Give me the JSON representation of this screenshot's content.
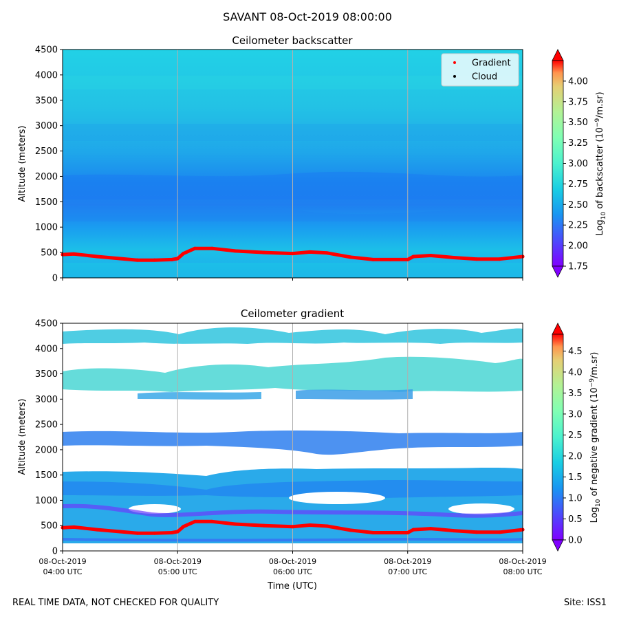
{
  "figure": {
    "suptitle": "SAVANT 08-Oct-2019 08:00:00",
    "footer_left": "REAL TIME DATA, NOT CHECKED FOR QUALITY",
    "footer_right": "Site: ISS1"
  },
  "chart_data": [
    {
      "type": "heatmap",
      "title": "Ceilometer backscatter",
      "ylabel": "Altitude (meters)",
      "xlabel": "",
      "ylim": [
        0,
        4500
      ],
      "yticks": [
        "0",
        "500",
        "1000",
        "1500",
        "2000",
        "2500",
        "3000",
        "3500",
        "4000",
        "4500"
      ],
      "xticks": [
        "04:00",
        "05:00",
        "06:00",
        "07:00",
        "08:00"
      ],
      "x_tick_labels_shown": false,
      "grid": "vertical at hourly ticks",
      "colormap": "rainbow",
      "colorbar": {
        "label_prefix": "Log",
        "label_sub": "10",
        "label_mid": " of backscatter (10",
        "label_sup": "−9",
        "label_suffix": "/m.sr)",
        "range": [
          1.75,
          4.25
        ],
        "ticks": [
          "1.75",
          "2.00",
          "2.25",
          "2.50",
          "2.75",
          "3.00",
          "3.25",
          "3.50",
          "3.75",
          "4.00"
        ]
      },
      "legend": {
        "position": "top-right",
        "entries": [
          {
            "label": "Gradient",
            "color": "#ff0000"
          },
          {
            "label": "Cloud",
            "color": "#000000"
          }
        ]
      },
      "series": [
        {
          "name": "Gradient",
          "color": "#ff0000",
          "x_hours": [
            4.0,
            4.1,
            4.3,
            4.5,
            4.65,
            4.8,
            4.95,
            5.0,
            5.05,
            5.15,
            5.3,
            5.5,
            5.75,
            6.0,
            6.15,
            6.3,
            6.5,
            6.7,
            6.85,
            7.0,
            7.05,
            7.2,
            7.4,
            7.6,
            7.8,
            8.0
          ],
          "altitude_m": [
            460,
            470,
            420,
            380,
            350,
            350,
            360,
            380,
            480,
            580,
            580,
            530,
            500,
            480,
            510,
            490,
            410,
            360,
            360,
            360,
            420,
            440,
            400,
            370,
            370,
            420
          ]
        }
      ]
    },
    {
      "type": "heatmap",
      "title": "Ceilometer gradient",
      "ylabel": "Altitude (meters)",
      "xlabel": "Time (UTC)",
      "ylim": [
        0,
        4500
      ],
      "yticks": [
        "0",
        "500",
        "1000",
        "1500",
        "2000",
        "2500",
        "3000",
        "3500",
        "4000",
        "4500"
      ],
      "xticks": [
        {
          "date": "08-Oct-2019",
          "time": "04:00 UTC"
        },
        {
          "date": "08-Oct-2019",
          "time": "05:00 UTC"
        },
        {
          "date": "08-Oct-2019",
          "time": "06:00 UTC"
        },
        {
          "date": "08-Oct-2019",
          "time": "07:00 UTC"
        },
        {
          "date": "08-Oct-2019",
          "time": "08:00 UTC"
        }
      ],
      "grid": "vertical at hourly ticks",
      "colormap": "rainbow",
      "colorbar": {
        "label_prefix": "Log",
        "label_sub": "10",
        "label_mid": " of negative gradient (10",
        "label_sup": "−9",
        "label_suffix": "/m.sr)",
        "range": [
          0.0,
          4.9
        ],
        "ticks": [
          "0.0",
          "0.5",
          "1.0",
          "1.5",
          "2.0",
          "2.5",
          "3.0",
          "3.5",
          "4.0",
          "4.5"
        ]
      },
      "series": [
        {
          "name": "Gradient",
          "color": "#ff0000",
          "x_hours": [
            4.0,
            4.1,
            4.3,
            4.5,
            4.65,
            4.8,
            4.95,
            5.0,
            5.05,
            5.15,
            5.3,
            5.5,
            5.75,
            6.0,
            6.15,
            6.3,
            6.5,
            6.7,
            6.85,
            7.0,
            7.05,
            7.2,
            7.4,
            7.6,
            7.8,
            8.0
          ],
          "altitude_m": [
            460,
            470,
            420,
            380,
            350,
            350,
            360,
            380,
            480,
            580,
            580,
            530,
            500,
            480,
            510,
            490,
            410,
            360,
            360,
            360,
            420,
            440,
            400,
            370,
            370,
            420
          ]
        }
      ]
    }
  ]
}
